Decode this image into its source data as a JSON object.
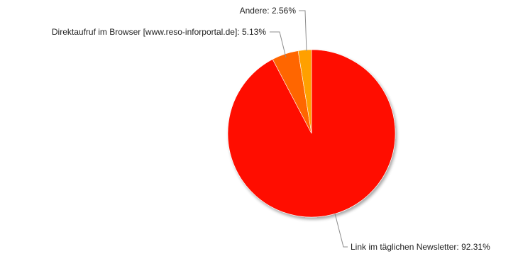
{
  "chart_data": {
    "type": "pie",
    "title": "",
    "slices": [
      {
        "label": "Link im täglichen Newsletter",
        "value": 92.31,
        "value_text": "92.31%",
        "color": "#ff1100"
      },
      {
        "label": "Direktaufruf im Browser [www.reso-inforportal.de]",
        "value": 5.13,
        "value_text": "5.13%",
        "color": "#ff6600"
      },
      {
        "label": "Andere",
        "value": 2.56,
        "value_text": "2.56%",
        "color": "#ffa000"
      }
    ],
    "start_angle_deg": 0,
    "direction": "clockwise",
    "legend": "none",
    "labels": "outside-with-leaders"
  }
}
